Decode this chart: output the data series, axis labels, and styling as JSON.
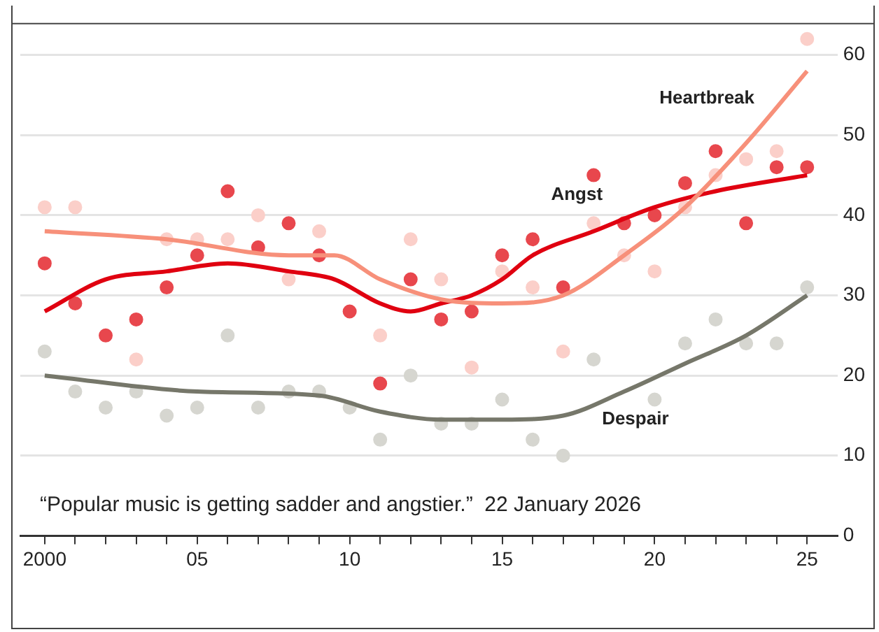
{
  "chart_data": {
    "type": "scatter",
    "x": [
      2000,
      2001,
      2002,
      2003,
      2004,
      2005,
      2006,
      2007,
      2008,
      2009,
      2010,
      2011,
      2012,
      2013,
      2014,
      2015,
      2016,
      2017,
      2018,
      2019,
      2020,
      2021,
      2022,
      2023,
      2024,
      2025
    ],
    "series": [
      {
        "color": "#e8474d",
        "values": [
          34,
          29,
          25,
          27,
          31,
          35,
          43,
          36,
          39,
          35,
          28,
          19,
          32,
          27,
          28,
          35,
          37,
          31,
          45,
          39,
          40,
          44,
          48,
          39,
          46,
          46
        ]
      },
      {
        "color": "#fbcfc9",
        "values": [
          41,
          41,
          null,
          22,
          37,
          37,
          37,
          40,
          32,
          38,
          null,
          25,
          37,
          32,
          21,
          33,
          31,
          23,
          39,
          35,
          33,
          41,
          45,
          47,
          48,
          62
        ]
      },
      {
        "color": "#d6d6d0",
        "values": [
          23,
          18,
          16,
          18,
          15,
          16,
          25,
          16,
          18,
          18,
          16,
          12,
          20,
          14,
          14,
          17,
          12,
          10,
          22,
          null,
          17,
          24,
          27,
          24,
          24,
          31
        ]
      },
      {
        "type": "line",
        "marker": "none",
        "name": "Heartbreak",
        "color": "#f7907a",
        "x": [
          2000,
          2004,
          2008,
          2009.5,
          2011,
          2013,
          2015,
          2017,
          2019,
          2021,
          2023,
          2025
        ],
        "values": [
          38,
          37,
          35,
          35,
          32,
          29.5,
          29,
          30,
          35,
          41,
          49,
          58
        ]
      },
      {
        "type": "line",
        "marker": "none",
        "name": "Angst",
        "color": "#e00010",
        "x": [
          2000,
          2002,
          2004,
          2006,
          2008,
          2009.5,
          2011,
          2012,
          2013,
          2014,
          2015,
          2016,
          2018,
          2020,
          2022,
          2025
        ],
        "values": [
          28,
          32,
          33,
          34,
          33,
          32,
          29,
          28,
          29,
          30,
          32,
          35,
          38,
          41,
          43,
          45
        ]
      },
      {
        "type": "line",
        "marker": "none",
        "name": "Despair",
        "color": "#76776a",
        "x": [
          2000,
          2005,
          2009,
          2011,
          2013,
          2015,
          2017,
          2019,
          2021,
          2023,
          2025
        ],
        "values": [
          20,
          18,
          17.5,
          15.5,
          14.5,
          14.5,
          15,
          18,
          21.5,
          25,
          30
        ]
      }
    ],
    "xlim": [
      1999.2,
      2026
    ],
    "xticks": [
      {
        "value": 2000,
        "label": "2000"
      },
      {
        "value": 2001,
        "label": null
      },
      {
        "value": 2002,
        "label": null
      },
      {
        "value": 2003,
        "label": null
      },
      {
        "value": 2004,
        "label": null
      },
      {
        "value": 2005,
        "label": "05"
      },
      {
        "value": 2006,
        "label": null
      },
      {
        "value": 2007,
        "label": null
      },
      {
        "value": 2008,
        "label": null
      },
      {
        "value": 2009,
        "label": null
      },
      {
        "value": 2010,
        "label": "10"
      },
      {
        "value": 2011,
        "label": null
      },
      {
        "value": 2012,
        "label": null
      },
      {
        "value": 2013,
        "label": null
      },
      {
        "value": 2014,
        "label": null
      },
      {
        "value": 2015,
        "label": "15"
      },
      {
        "value": 2016,
        "label": null
      },
      {
        "value": 2017,
        "label": null
      },
      {
        "value": 2018,
        "label": null
      },
      {
        "value": 2019,
        "label": null
      },
      {
        "value": 2020,
        "label": "20"
      },
      {
        "value": 2021,
        "label": null
      },
      {
        "value": 2022,
        "label": null
      },
      {
        "value": 2023,
        "label": null
      },
      {
        "value": 2024,
        "label": null
      },
      {
        "value": 2025,
        "label": "25"
      }
    ],
    "ylim": [
      0,
      64
    ],
    "yticks": [
      0,
      10,
      20,
      30,
      40,
      50,
      60
    ],
    "grid": "y",
    "marker": "circle",
    "annotations": [
      "“Popular music is getting sadder and angstier.”  22 January 2026"
    ]
  }
}
